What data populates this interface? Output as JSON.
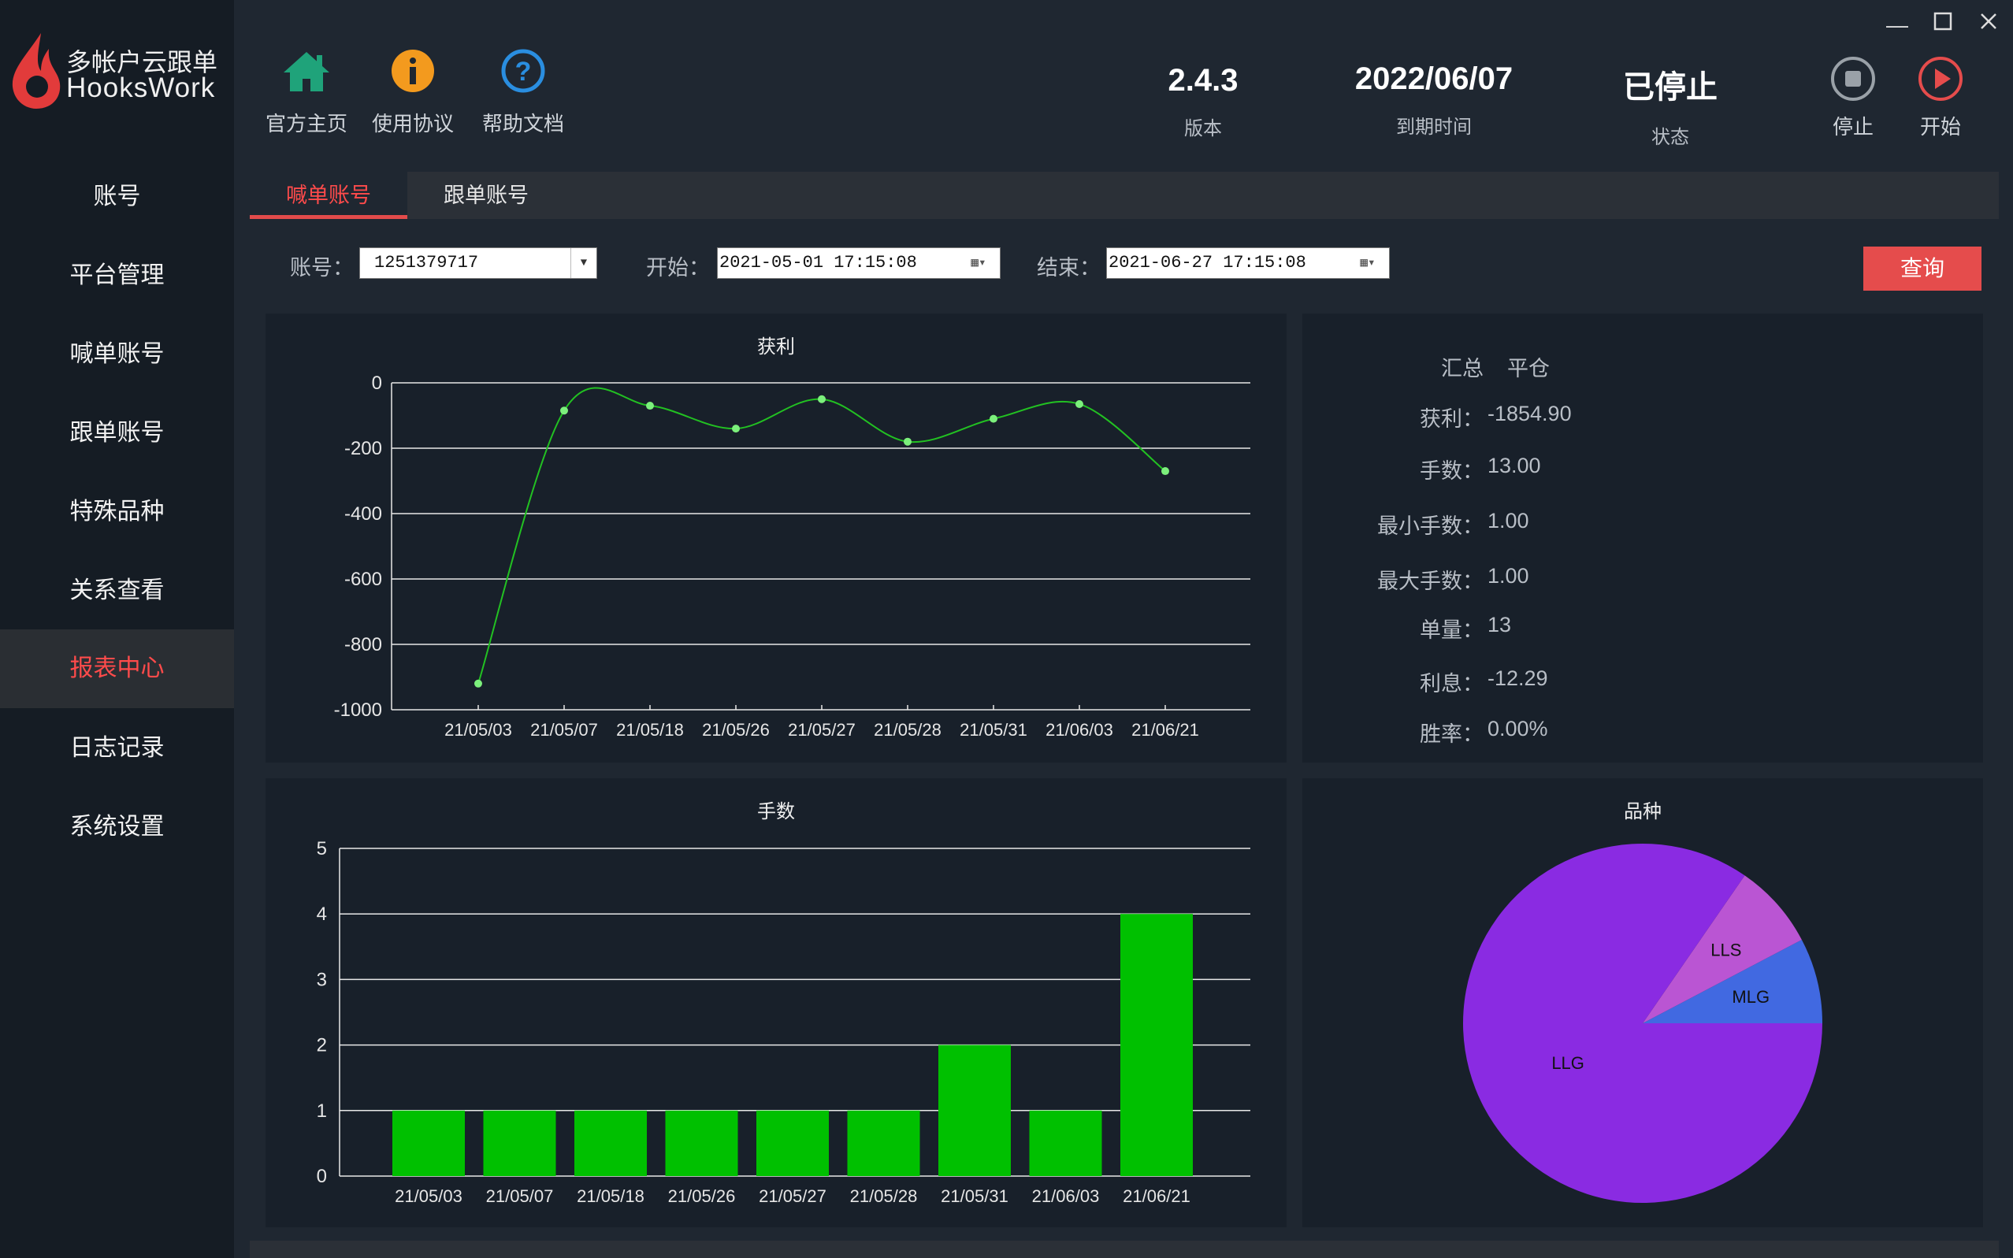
{
  "app": {
    "logo_title": "多帐户云跟单",
    "logo_subtitle": "HooksWork"
  },
  "sidebar": {
    "items": [
      {
        "label": "账号"
      },
      {
        "label": "平台管理"
      },
      {
        "label": "喊单账号"
      },
      {
        "label": "跟单账号"
      },
      {
        "label": "特殊品种"
      },
      {
        "label": "关系查看"
      },
      {
        "label": "报表中心",
        "active": true
      },
      {
        "label": "日志记录"
      },
      {
        "label": "系统设置"
      }
    ]
  },
  "header": {
    "buttons": [
      {
        "label": "官方主页",
        "icon": "home-icon"
      },
      {
        "label": "使用协议",
        "icon": "info-icon"
      },
      {
        "label": "帮助文档",
        "icon": "help-icon"
      }
    ],
    "version": {
      "value": "2.4.3",
      "label": "版本"
    },
    "expiry": {
      "value": "2022/06/07",
      "label": "到期时间"
    },
    "status": {
      "value": "已停止",
      "label": "状态"
    },
    "stop_label": "停止",
    "start_label": "开始"
  },
  "tabs": [
    {
      "label": "喊单账号",
      "active": true
    },
    {
      "label": "跟单账号"
    }
  ],
  "filters": {
    "account_label": "账号：",
    "account_value": "1251379717",
    "start_label": "开始：",
    "start_value": "2021-05-01 17:15:08",
    "end_label": "结束：",
    "end_value": "2021-06-27 17:15:08",
    "query_label": "查询"
  },
  "summary": {
    "rows": [
      {
        "k": "汇总",
        "v": "平仓"
      },
      {
        "k": "获利：",
        "v": "-1854.90"
      },
      {
        "k": "手数：",
        "v": "13.00"
      },
      {
        "k": "最小手数：",
        "v": "1.00"
      },
      {
        "k": "最大手数：",
        "v": "1.00"
      },
      {
        "k": "单量：",
        "v": "13"
      },
      {
        "k": "利息：",
        "v": "-12.29"
      },
      {
        "k": "胜率：",
        "v": "0.00%"
      }
    ]
  },
  "colors": {
    "accent": "#e54c4c",
    "line_series": "#22c122",
    "bar_series": "#00c000",
    "pie_llg": "#8a2be2",
    "pie_lls": "#ba55d3",
    "pie_mlg": "#4169e1"
  },
  "chart_data": [
    {
      "type": "line",
      "title": "获利",
      "categories": [
        "21/05/03",
        "21/05/07",
        "21/05/18",
        "21/05/26",
        "21/05/27",
        "21/05/28",
        "21/05/31",
        "21/06/03",
        "21/06/21"
      ],
      "values": [
        -920,
        -85,
        -70,
        -140,
        -50,
        -180,
        -110,
        -65,
        -270
      ],
      "ylim": [
        -1000,
        0
      ],
      "yticks": [
        0,
        -200,
        -400,
        -600,
        -800,
        -1000
      ],
      "grid": true
    },
    {
      "type": "bar",
      "title": "手数",
      "categories": [
        "21/05/03",
        "21/05/07",
        "21/05/18",
        "21/05/26",
        "21/05/27",
        "21/05/28",
        "21/05/31",
        "21/06/03",
        "21/06/21"
      ],
      "values": [
        1,
        1,
        1,
        1,
        1,
        1,
        2,
        1,
        4
      ],
      "ylim": [
        0,
        5
      ],
      "yticks": [
        0,
        1,
        2,
        3,
        4,
        5
      ],
      "grid": true
    },
    {
      "type": "pie",
      "title": "品种",
      "slices": [
        {
          "label": "LLG",
          "value": 11
        },
        {
          "label": "LLS",
          "value": 1
        },
        {
          "label": "MLG",
          "value": 1
        }
      ]
    }
  ]
}
